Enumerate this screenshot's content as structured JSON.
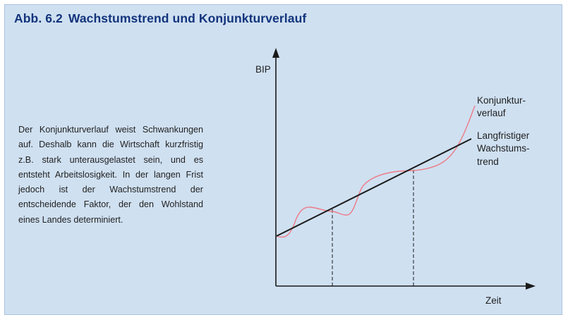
{
  "figure": {
    "number": "Abb. 6.2",
    "title": "Wachstumstrend und Konjunkturverlauf"
  },
  "description": "Der Konjunkturverlauf weist Schwan­kungen auf. Deshalb kann die Wirtschaft kurzfristig z.B. stark unterausgelastet sein, und es entsteht Arbeitslosigkeit. In der langen Frist jedoch ist der Wachstums­trend der entscheidende Faktor, der den Wohlstand eines Landes determiniert.",
  "diagram": {
    "y_axis_label": "BIP",
    "x_axis_label": "Zeit",
    "cycle_label_lines": [
      "Konjunktur-",
      "verlauf"
    ],
    "trend_label_lines": [
      "Langfristiger",
      "Wachstums-",
      "trend"
    ],
    "colors": {
      "background": "#cfe0f1",
      "title": "#13347c",
      "axis": "#1a1a1a",
      "trend": "#1a1a1a",
      "cycle": "#ee7a86"
    }
  }
}
